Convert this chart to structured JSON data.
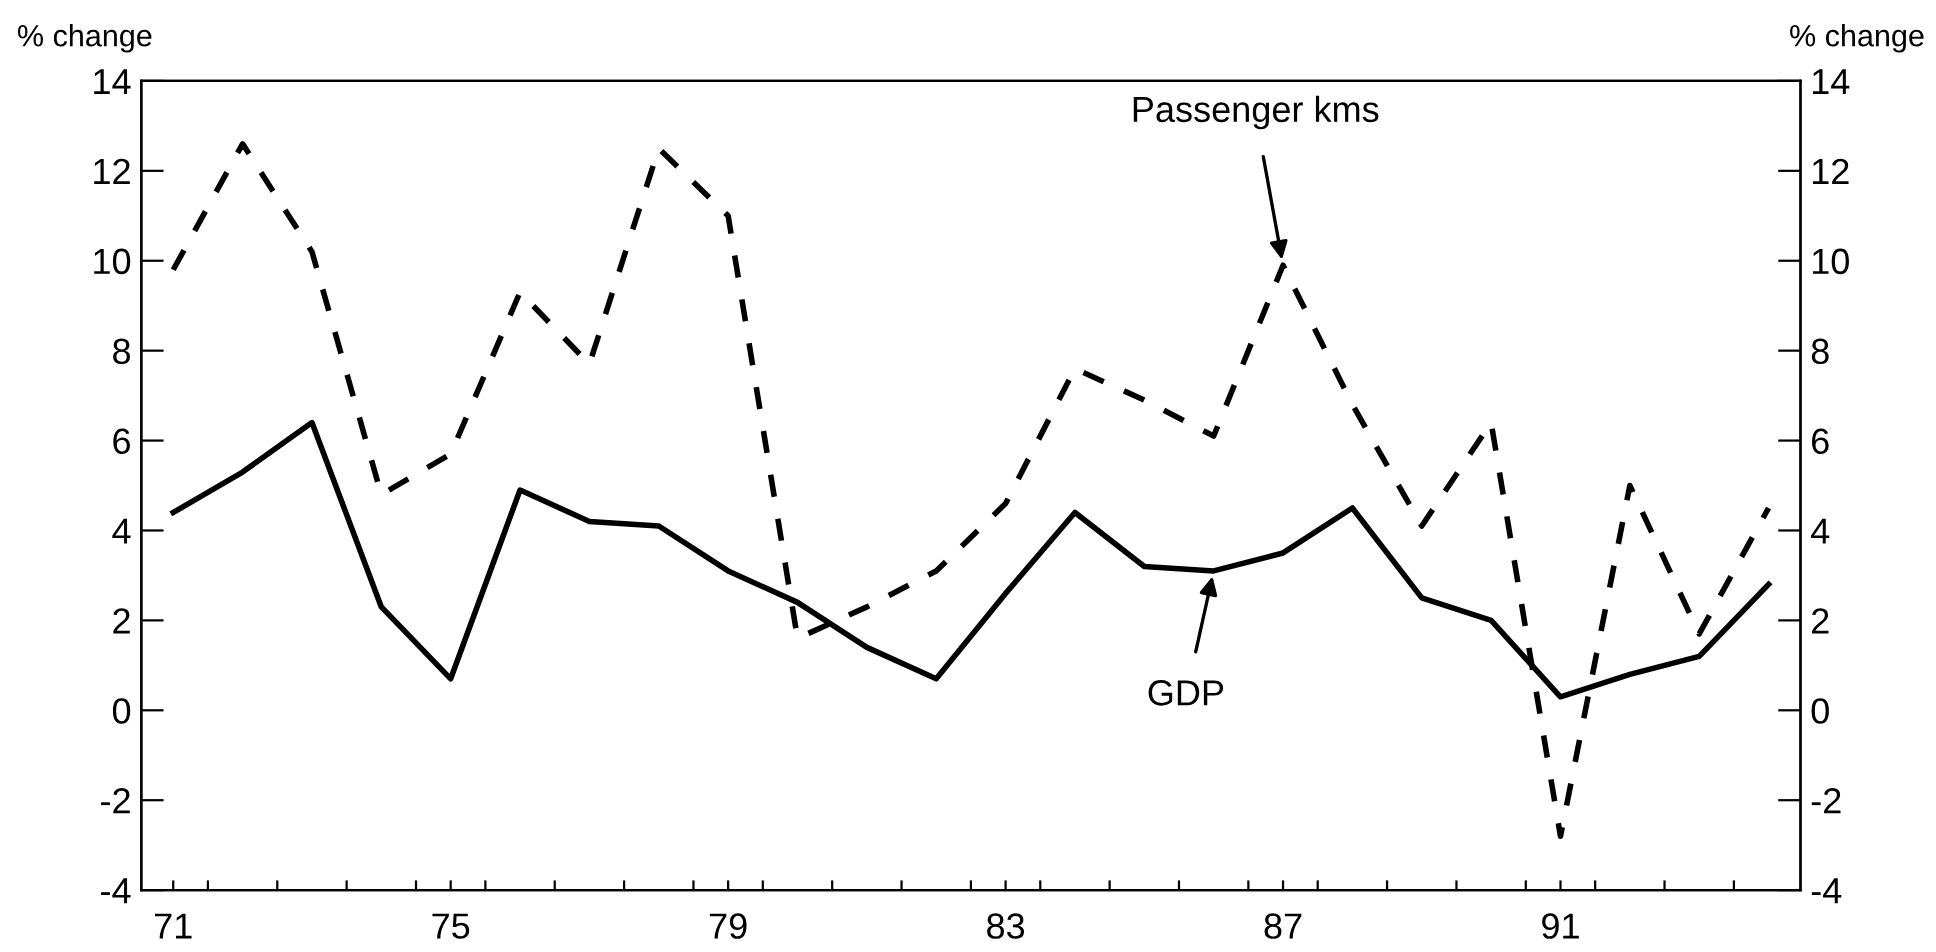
{
  "chart_data": {
    "type": "line",
    "ylabel": "% change",
    "y2label": "% change",
    "x": [
      71,
      72,
      73,
      74,
      75,
      76,
      77,
      78,
      79,
      80,
      81,
      82,
      83,
      84,
      85,
      86,
      87,
      88,
      89,
      90,
      91,
      92,
      93,
      94
    ],
    "xlim": [
      70.54,
      94.46
    ],
    "xticks": [
      71,
      75,
      79,
      83,
      87,
      91,
      {
        "value": 71.5,
        "label": null
      },
      {
        "value": 72.5,
        "label": null
      },
      {
        "value": 73.5,
        "label": null
      },
      {
        "value": 74.5,
        "label": null
      },
      {
        "value": 75.5,
        "label": null
      },
      {
        "value": 76.5,
        "label": null
      },
      {
        "value": 77.5,
        "label": null
      },
      {
        "value": 78.5,
        "label": null
      },
      {
        "value": 79.5,
        "label": null
      },
      {
        "value": 80.5,
        "label": null
      },
      {
        "value": 81.5,
        "label": null
      },
      {
        "value": 82.5,
        "label": null
      },
      {
        "value": 83.5,
        "label": null
      },
      {
        "value": 84.5,
        "label": null
      },
      {
        "value": 85.5,
        "label": null
      },
      {
        "value": 86.5,
        "label": null
      },
      {
        "value": 87.5,
        "label": null
      },
      {
        "value": 88.5,
        "label": null
      },
      {
        "value": 89.5,
        "label": null
      },
      {
        "value": 90.5,
        "label": null
      },
      {
        "value": 91.5,
        "label": null
      },
      {
        "value": 92.5,
        "label": null
      },
      {
        "value": 93.5,
        "label": null
      }
    ],
    "ylim": [
      -4,
      14
    ],
    "yticks": [
      -4,
      -2,
      0,
      2,
      4,
      6,
      8,
      10,
      12,
      14
    ],
    "y2lim": [
      -4,
      14
    ],
    "y2ticks": [
      -4,
      -2,
      0,
      2,
      4,
      6,
      8,
      10,
      12,
      14
    ],
    "series": [
      {
        "color": "#000000",
        "line_style": "dashed",
        "values": [
          9.8,
          12.6,
          10.2,
          4.8,
          5.7,
          9.3,
          7.7,
          12.5,
          11.0,
          1.6,
          2.3,
          3.1,
          4.6,
          7.6,
          6.9,
          6.1,
          9.9,
          6.8,
          4.1,
          6.4,
          -2.8,
          5.0,
          1.7,
          4.5
        ]
      },
      {
        "color": "#000000",
        "line_style": "solid",
        "values": [
          4.4,
          5.3,
          6.4,
          2.3,
          0.7,
          4.9,
          4.2,
          4.1,
          3.1,
          2.4,
          1.4,
          0.7,
          2.6,
          4.4,
          3.2,
          3.1,
          3.5,
          4.5,
          2.5,
          2.0,
          0.3,
          0.8,
          1.2,
          2.8
        ]
      }
    ],
    "annotations": [
      {
        "text": "Passenger kms",
        "x": 87,
        "y": 9.9
      },
      {
        "text": "GDP",
        "x": 86,
        "y": 3.1
      }
    ],
    "grid": false,
    "legend": false
  }
}
